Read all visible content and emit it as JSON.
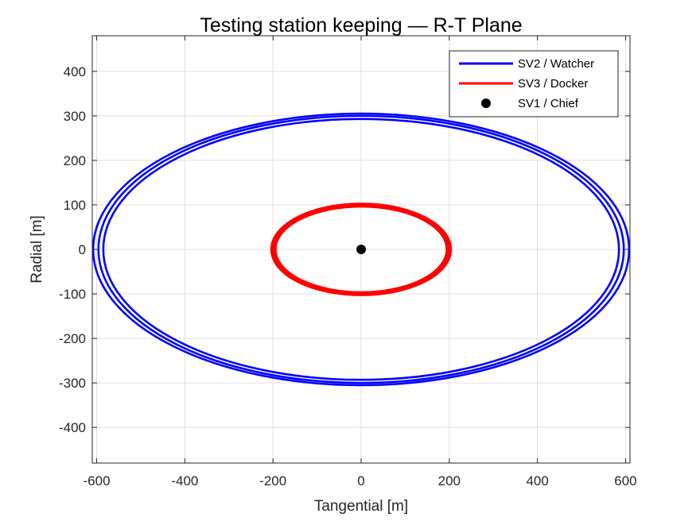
{
  "chart_data": {
    "type": "line",
    "title": "Testing station keeping — R-T Plane",
    "xlabel": "Tangential [m]",
    "ylabel": "Radial [m]",
    "xlim": [
      -610,
      610
    ],
    "ylim": [
      -480,
      480
    ],
    "xticks": [
      -600,
      -400,
      -200,
      0,
      200,
      400,
      600
    ],
    "yticks": [
      -400,
      -300,
      -200,
      -100,
      0,
      100,
      200,
      300,
      400
    ],
    "grid": true,
    "legend_position": "top-right",
    "series": [
      {
        "name": "SV2 / Watcher",
        "color": "#0000ff",
        "kind": "ellipse",
        "center": [
          0,
          0
        ],
        "semi_axes": [
          {
            "tangential": 608,
            "radial": 305
          },
          {
            "tangential": 596,
            "radial": 300
          },
          {
            "tangential": 585,
            "radial": 293
          }
        ]
      },
      {
        "name": "SV3 / Docker",
        "color": "#ff0000",
        "kind": "ellipse",
        "center": [
          0,
          0
        ],
        "semi_axes": [
          {
            "tangential": 202,
            "radial": 101
          },
          {
            "tangential": 196,
            "radial": 98
          }
        ]
      },
      {
        "name": "SV1 / Chief",
        "color": "#000000",
        "kind": "point",
        "points": [
          [
            0,
            0
          ]
        ]
      }
    ]
  }
}
